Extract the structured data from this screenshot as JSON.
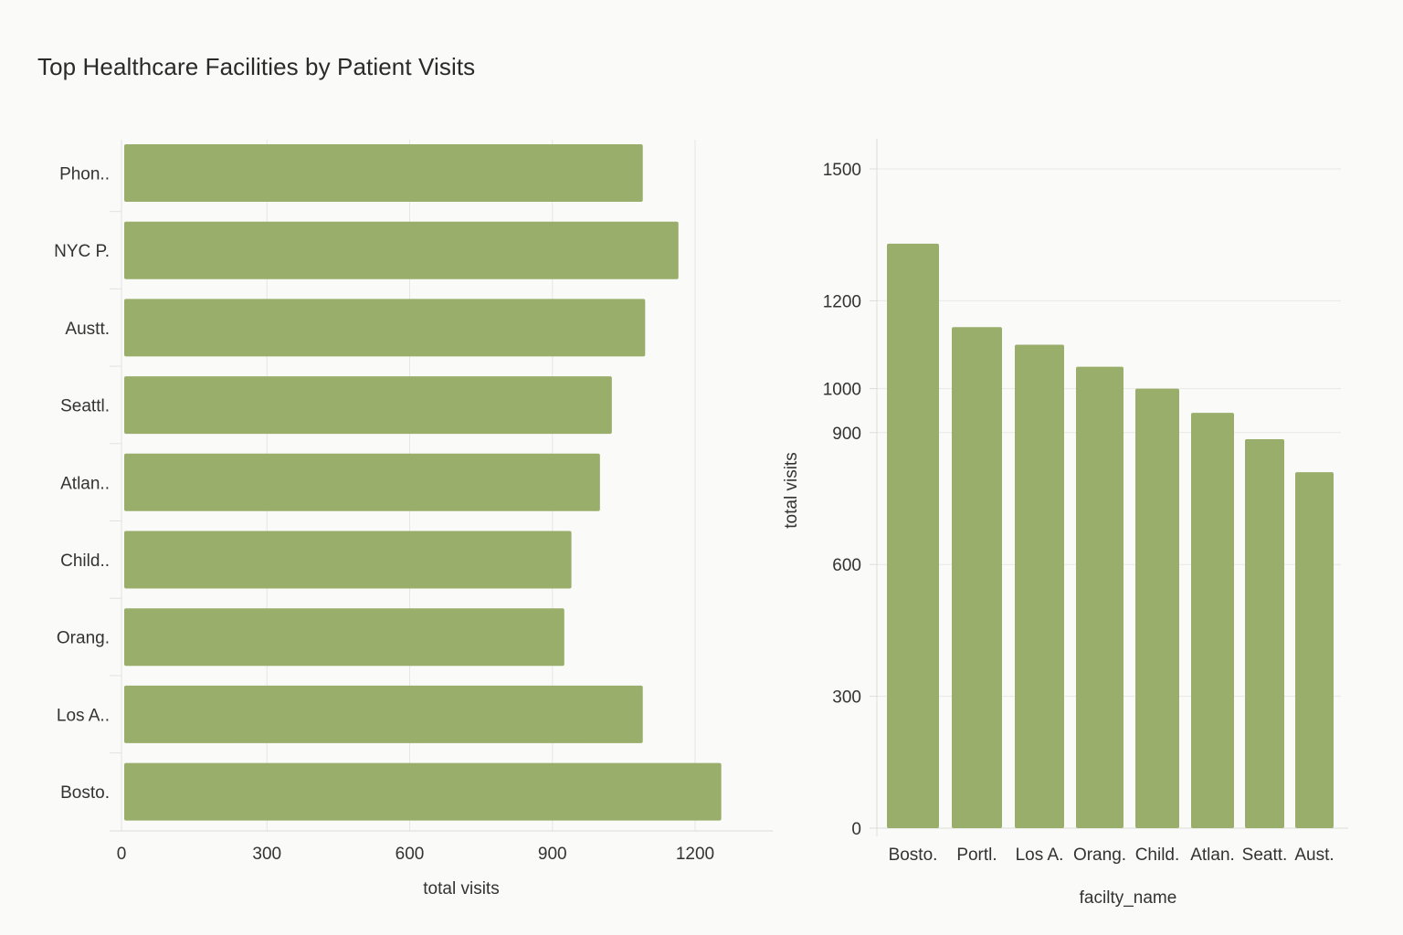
{
  "title": "Top Healthcare Facilities by Patient Visits",
  "bar_color": "#9aae6b",
  "chart_data": [
    {
      "type": "bar",
      "orientation": "horizontal",
      "categories": [
        "Phon..",
        "NYC P.",
        "Austt.",
        "Seattl.",
        "Atlan..",
        "Child..",
        "Orang.",
        "Los A..",
        "Bosto."
      ],
      "values": [
        1090,
        1165,
        1095,
        1025,
        1000,
        940,
        925,
        1090,
        1255
      ],
      "xlabel": "total visits",
      "ylabel": "",
      "xlim": [
        0,
        1350
      ],
      "xticks": [
        0,
        300,
        600,
        900,
        1200
      ],
      "grid": true
    },
    {
      "type": "bar",
      "orientation": "vertical",
      "categories": [
        "Bosto.",
        "Portl.",
        "Los A.",
        "Orang.",
        "Child.",
        "Atlan.",
        "Seatt.",
        "Aust."
      ],
      "values": [
        1330,
        1140,
        1100,
        1050,
        1000,
        945,
        885,
        810
      ],
      "xlabel": "facilty_name",
      "ylabel": "total visits",
      "yticks": [
        0,
        300,
        600,
        900,
        1000,
        1200,
        1500
      ],
      "grid": true
    }
  ]
}
